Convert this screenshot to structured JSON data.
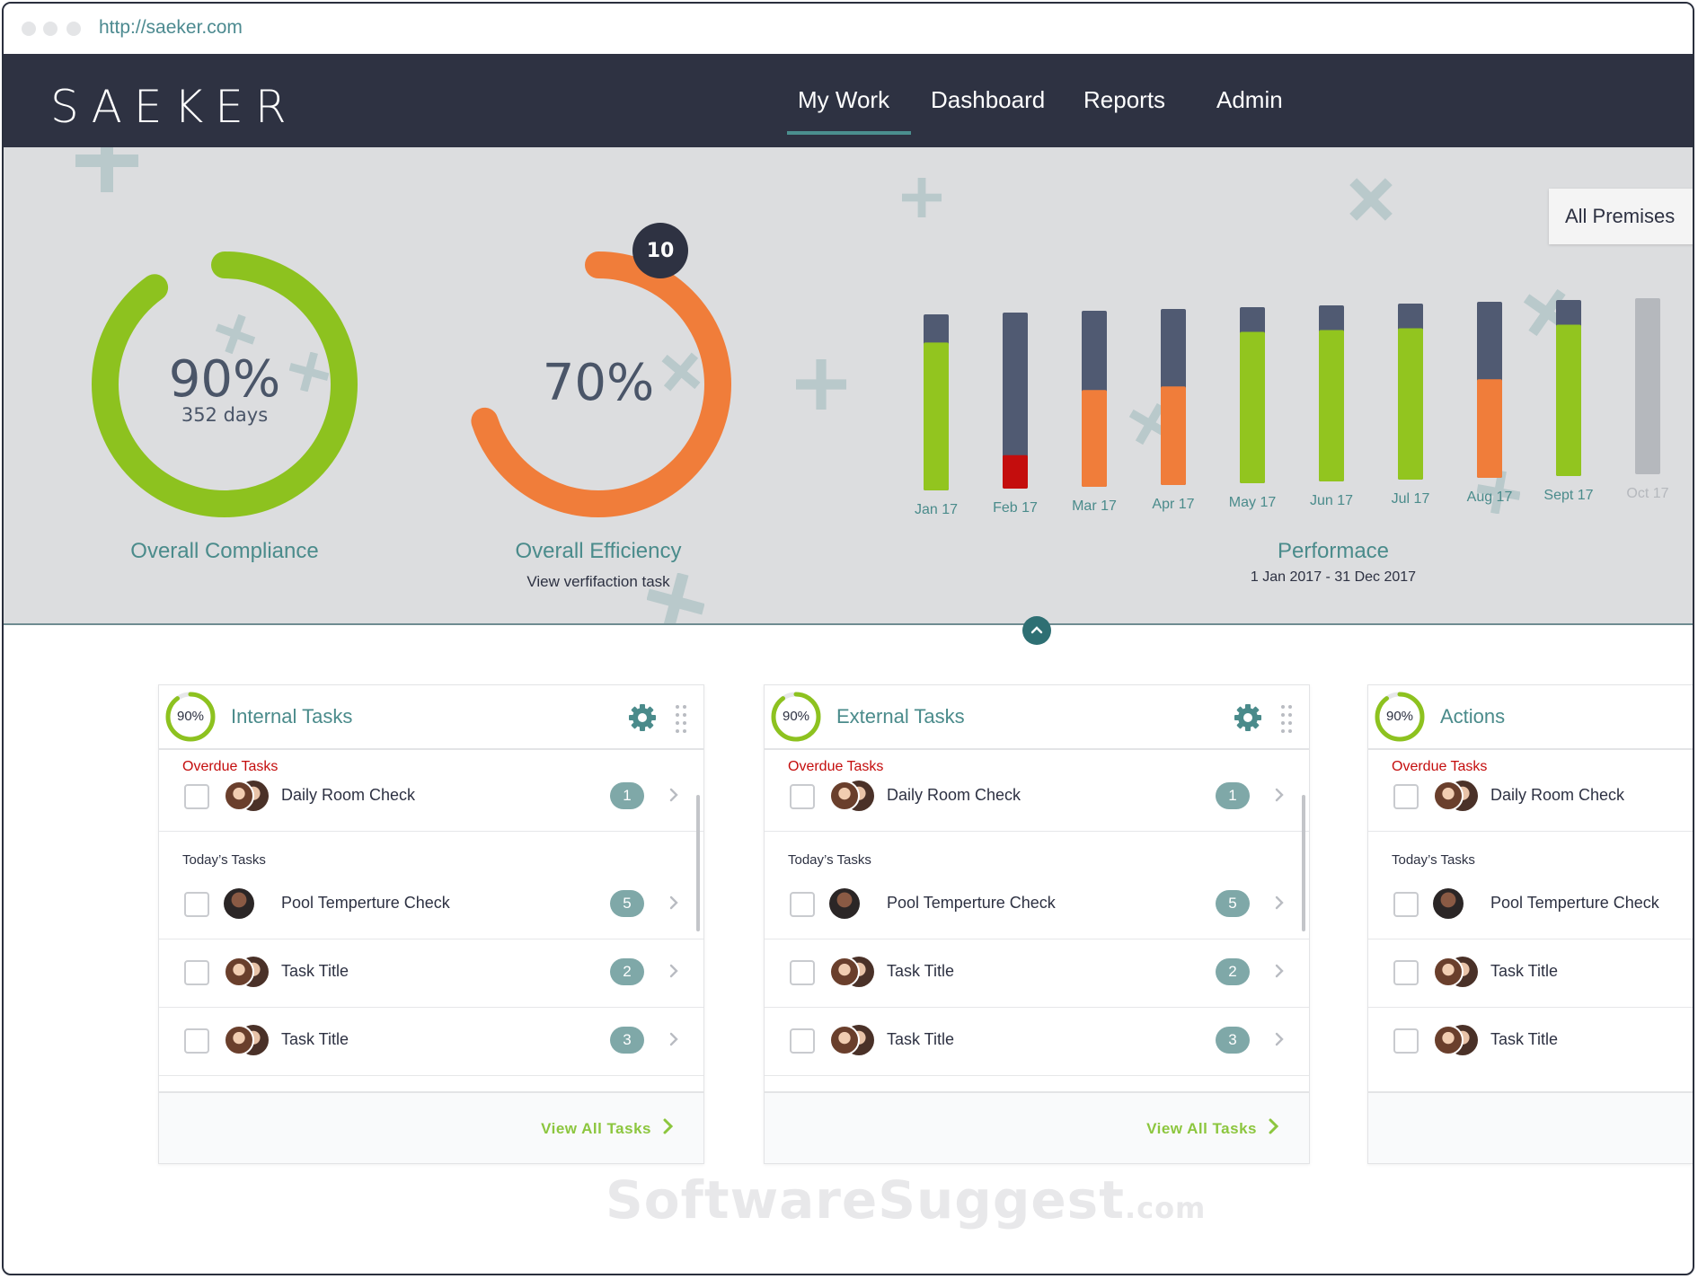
{
  "browser": {
    "url": "http://saeker.com"
  },
  "brand": {
    "logo": "SAEKER"
  },
  "nav": {
    "items": [
      {
        "label": "My Work",
        "active": true
      },
      {
        "label": "Dashboard"
      },
      {
        "label": "Reports"
      },
      {
        "label": "Admin"
      }
    ]
  },
  "hero": {
    "compliance": {
      "value": "90%",
      "days": "352 days",
      "label": "Overall Compliance",
      "percent": 90,
      "color": "#8dc21f"
    },
    "efficiency": {
      "value": "70%",
      "label": "Overall Efficiency",
      "sub": "View verfifaction task",
      "badge": "10",
      "percent": 70,
      "color": "#f07d3a"
    },
    "premises": "All Premises",
    "performance": {
      "title": "Performace",
      "range": "1 Jan 2017 - 31 Dec 2017"
    }
  },
  "chart_data": {
    "type": "bar",
    "categories": [
      "Jan 17",
      "Feb 17",
      "Mar 17",
      "Apr 17",
      "May 17",
      "Jun 17",
      "Jul 17",
      "Aug 17",
      "Sept 17",
      "Oct 17"
    ],
    "series": [
      {
        "values": [
          84,
          19,
          55,
          56,
          86,
          86,
          86,
          56,
          86,
          0
        ]
      },
      {
        "values": [
          16,
          81,
          45,
          44,
          14,
          14,
          14,
          44,
          14,
          100
        ]
      }
    ],
    "series_colors": [
      [
        "#92c51f",
        "#c40d0d",
        "#f07d3a",
        "#f07d3a",
        "#92c51f",
        "#92c51f",
        "#92c51f",
        "#f07d3a",
        "#92c51f",
        "#b5b8bd"
      ],
      [
        "#505a72",
        "#505a72",
        "#505a72",
        "#505a72",
        "#505a72",
        "#505a72",
        "#505a72",
        "#505a72",
        "#505a72",
        "#b5b8bd"
      ]
    ],
    "ylim": [
      0,
      100
    ]
  },
  "panels": [
    {
      "title": "Internal Tasks",
      "progress": "90%",
      "overdue_label": "Overdue Tasks",
      "today_label": "Today’s Tasks",
      "overdue": [
        {
          "title": "Daily Room Check",
          "count": "1"
        }
      ],
      "today": [
        {
          "title": "Pool Temperture Check",
          "count": "5"
        },
        {
          "title": "Task Title",
          "count": "2"
        },
        {
          "title": "Task Title",
          "count": "3"
        }
      ],
      "footer": "View All Tasks"
    },
    {
      "title": "External Tasks",
      "progress": "90%",
      "overdue_label": "Overdue Tasks",
      "today_label": "Today’s Tasks",
      "overdue": [
        {
          "title": "Daily Room Check",
          "count": "1"
        }
      ],
      "today": [
        {
          "title": "Pool Temperture Check",
          "count": "5"
        },
        {
          "title": "Task Title",
          "count": "2"
        },
        {
          "title": "Task Title",
          "count": "3"
        }
      ],
      "footer": "View All Tasks"
    },
    {
      "title": "Actions",
      "progress": "90%",
      "overdue_label": "Overdue Tasks",
      "today_label": "Today’s Tasks",
      "overdue": [
        {
          "title": "Daily Room Check"
        }
      ],
      "today": [
        {
          "title": "Pool Temperture Check"
        },
        {
          "title": "Task Title"
        },
        {
          "title": "Task Title"
        }
      ]
    }
  ],
  "watermark": {
    "main": "SoftwareSuggest",
    "suffix": ".com"
  },
  "colors": {
    "nav_bg": "#2e3242",
    "accent_teal": "#4a8b8b",
    "green": "#8dc21f",
    "orange": "#f07d3a",
    "overdue_red": "#c40d0d"
  }
}
